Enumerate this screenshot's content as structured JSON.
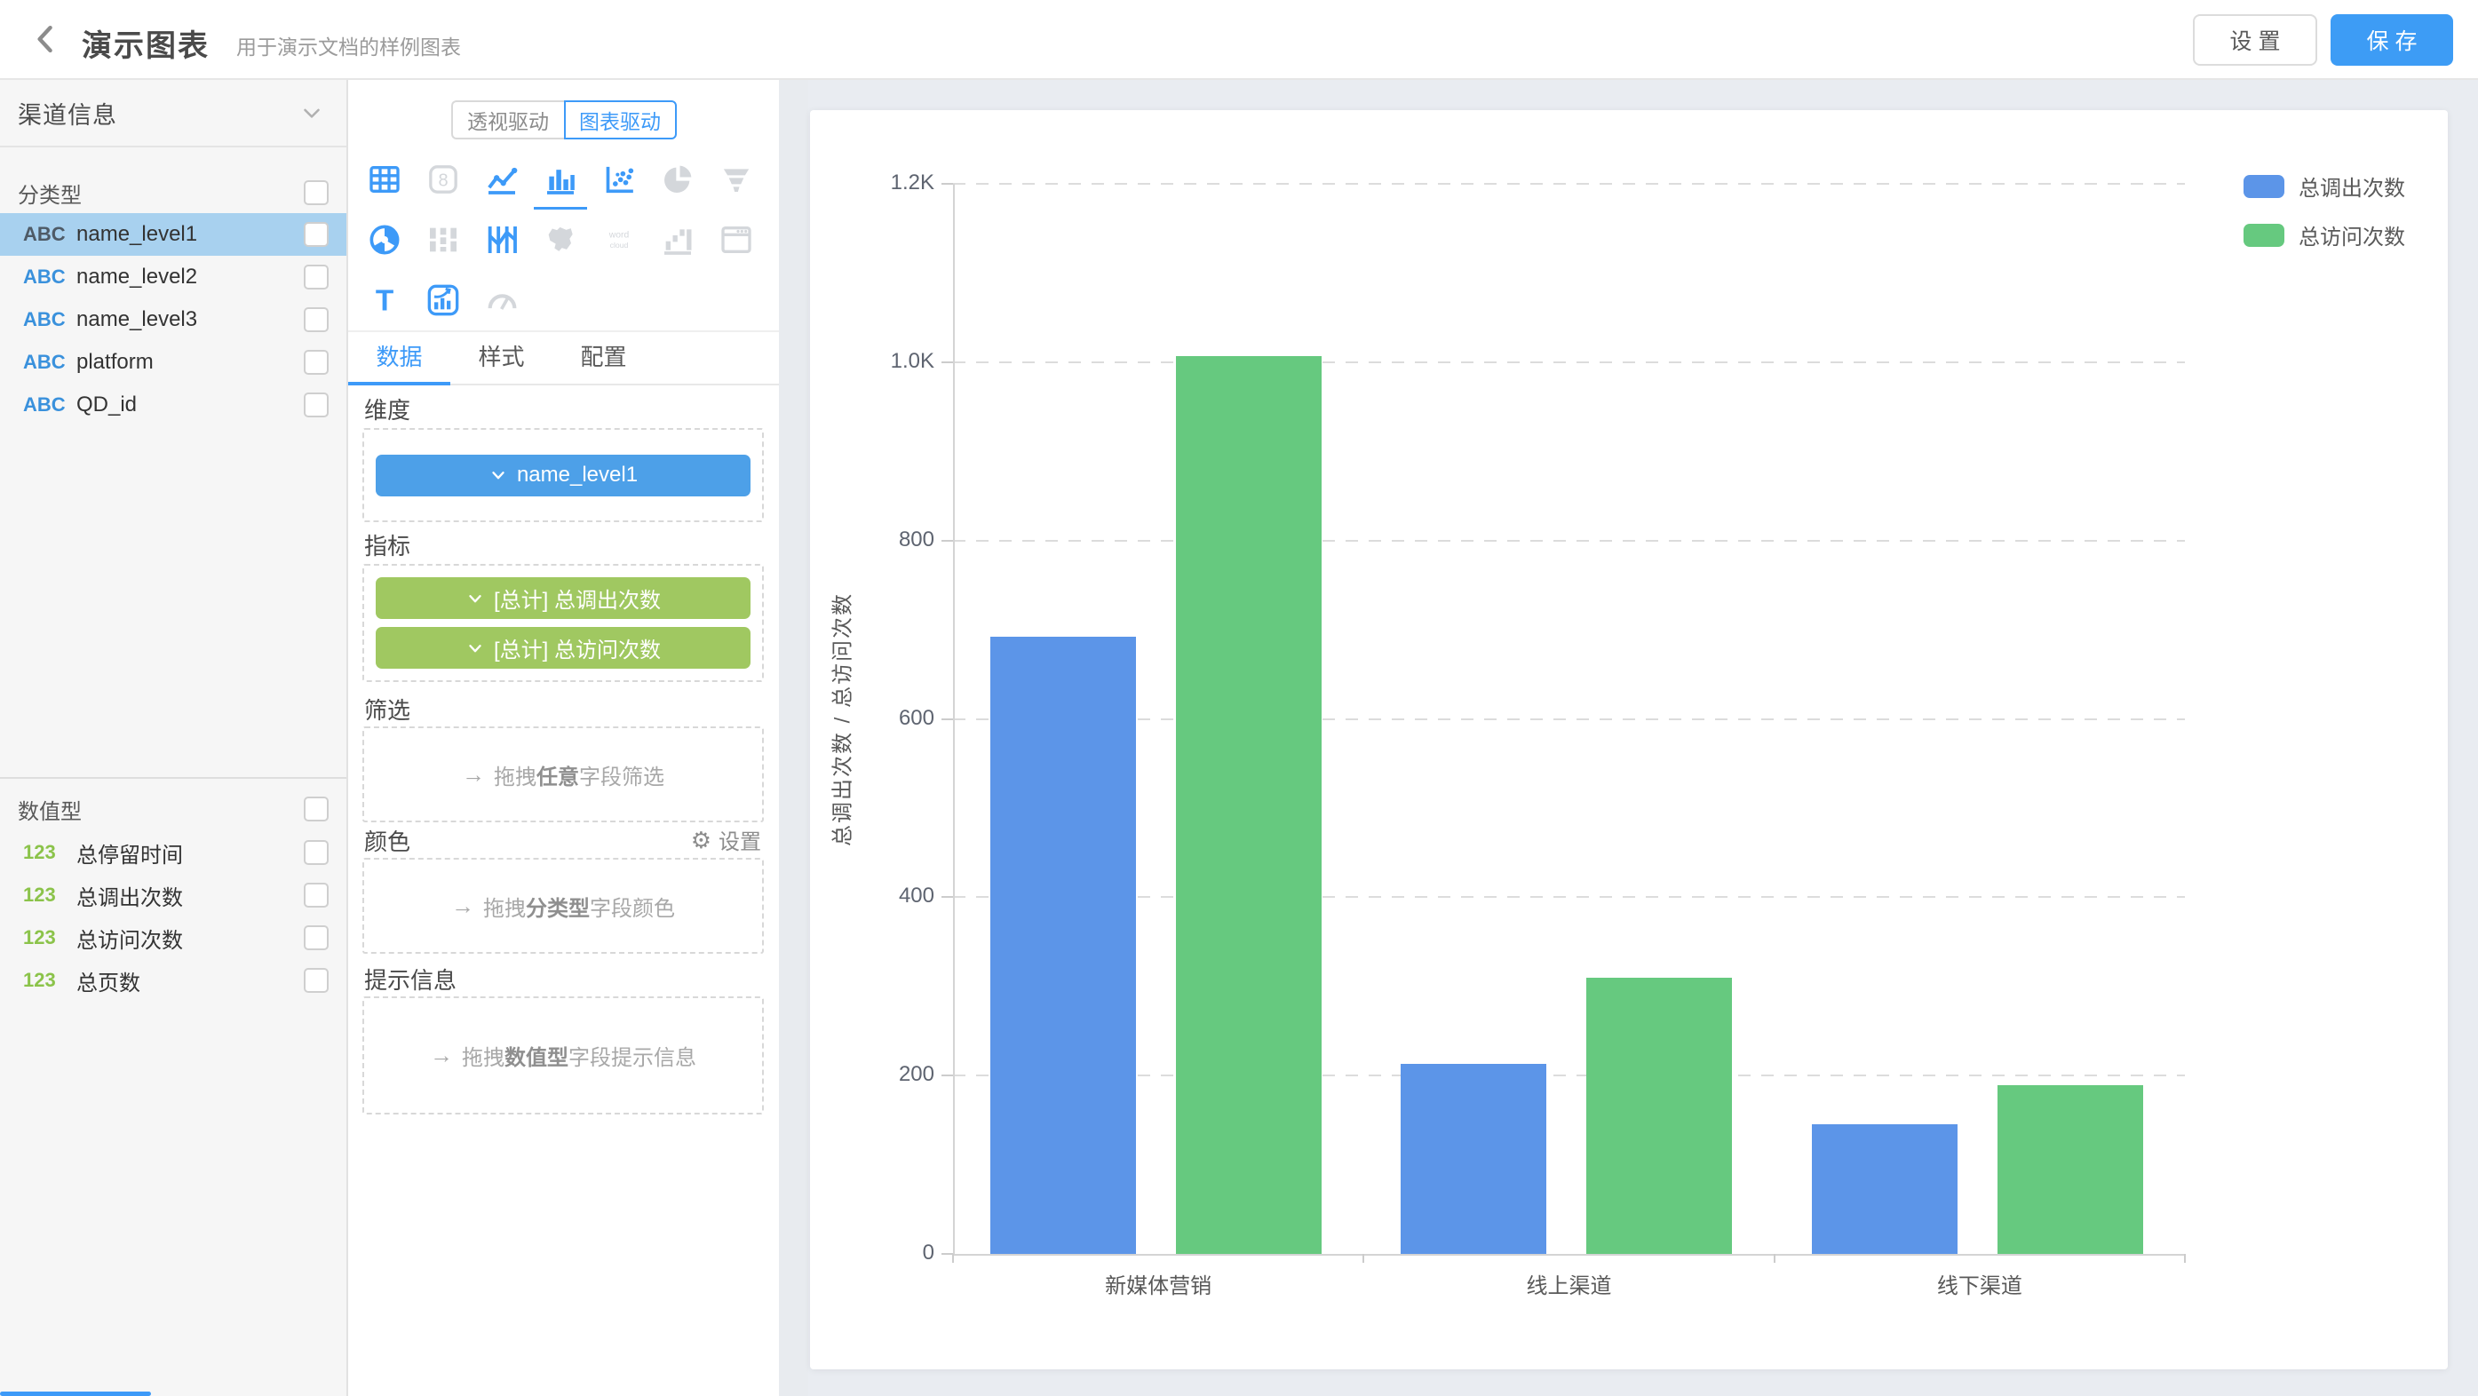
{
  "header": {
    "title": "演示图表",
    "subtitle": "用于演示文档的样例图表",
    "settings_button": "设 置",
    "save_button": "保 存"
  },
  "sidebar": {
    "view_selector": "渠道信息",
    "categorical": {
      "label": "分类型",
      "type_badge": "ABC",
      "fields": [
        {
          "name": "name_level1",
          "selected": true
        },
        {
          "name": "name_level2",
          "selected": false
        },
        {
          "name": "name_level3",
          "selected": false
        },
        {
          "name": "platform",
          "selected": false
        },
        {
          "name": "QD_id",
          "selected": false
        }
      ]
    },
    "numeric": {
      "label": "数值型",
      "type_badge": "123",
      "fields": [
        {
          "name": "总停留时间"
        },
        {
          "name": "总调出次数"
        },
        {
          "name": "总访问次数"
        },
        {
          "name": "总页数"
        }
      ]
    }
  },
  "panel": {
    "mode_toggle": [
      {
        "label": "透视驱动",
        "active": false
      },
      {
        "label": "图表驱动",
        "active": true
      }
    ],
    "chart_types": [
      {
        "name": "table",
        "enabled": true,
        "active": false
      },
      {
        "name": "scorecard",
        "enabled": false,
        "active": false
      },
      {
        "name": "line",
        "enabled": true,
        "active": false
      },
      {
        "name": "bar",
        "enabled": true,
        "active": true
      },
      {
        "name": "scatter",
        "enabled": true,
        "active": false
      },
      {
        "name": "pie",
        "enabled": false,
        "active": false
      },
      {
        "name": "funnel",
        "enabled": false,
        "active": false
      },
      {
        "name": "radar",
        "enabled": true,
        "active": false
      },
      {
        "name": "sankey",
        "enabled": false,
        "active": false
      },
      {
        "name": "parallel",
        "enabled": true,
        "active": false
      },
      {
        "name": "map",
        "enabled": false,
        "active": false
      },
      {
        "name": "wordcloud",
        "enabled": false,
        "active": false
      },
      {
        "name": "waterfall",
        "enabled": false,
        "active": false
      },
      {
        "name": "iframe",
        "enabled": false,
        "active": false
      },
      {
        "name": "text",
        "enabled": true,
        "active": false
      },
      {
        "name": "double-axis",
        "enabled": true,
        "active": false
      },
      {
        "name": "gauge",
        "enabled": false,
        "active": false
      }
    ],
    "tabs": [
      {
        "label": "数据",
        "active": true
      },
      {
        "label": "样式",
        "active": false
      },
      {
        "label": "配置",
        "active": false
      }
    ],
    "sections": {
      "dimensions": {
        "label": "维度",
        "chips": [
          {
            "text": "name_level1",
            "color": "#4da0e8"
          }
        ]
      },
      "metrics": {
        "label": "指标",
        "chips": [
          {
            "text": "[总计] 总调出次数",
            "color": "#a0c861"
          },
          {
            "text": "[总计] 总访问次数",
            "color": "#a0c861"
          }
        ]
      },
      "filters": {
        "label": "筛选",
        "placeholder": {
          "arrow": "→",
          "pre": "拖拽",
          "bold": "任意",
          "post": "字段筛选"
        }
      },
      "color": {
        "label": "颜色",
        "action": "设置",
        "placeholder": {
          "arrow": "→",
          "pre": "拖拽",
          "bold": "分类型",
          "post": "字段颜色"
        }
      },
      "tooltip": {
        "label": "提示信息",
        "placeholder": {
          "arrow": "→",
          "pre": "拖拽",
          "bold": "数值型",
          "post": "字段提示信息"
        }
      }
    }
  },
  "chart_data": {
    "type": "bar",
    "categories": [
      "新媒体营销",
      "线上渠道",
      "线下渠道"
    ],
    "series": [
      {
        "name": "总调出次数",
        "color": "#5C95E8",
        "values": [
          692,
          213,
          145
        ]
      },
      {
        "name": "总访问次数",
        "color": "#66C97F",
        "values": [
          1007,
          310,
          189
        ]
      }
    ],
    "ylabel": "总调出次数 / 总访问次数",
    "ylim": [
      0,
      1200
    ],
    "yticks": [
      {
        "value": 0,
        "label": "0"
      },
      {
        "value": 200,
        "label": "200"
      },
      {
        "value": 400,
        "label": "400"
      },
      {
        "value": 600,
        "label": "600"
      },
      {
        "value": 800,
        "label": "800"
      },
      {
        "value": 1000,
        "label": "1.0K"
      },
      {
        "value": 1200,
        "label": "1.2K"
      }
    ],
    "grid": "horizontal-dashed",
    "legend_position": "top-right"
  }
}
